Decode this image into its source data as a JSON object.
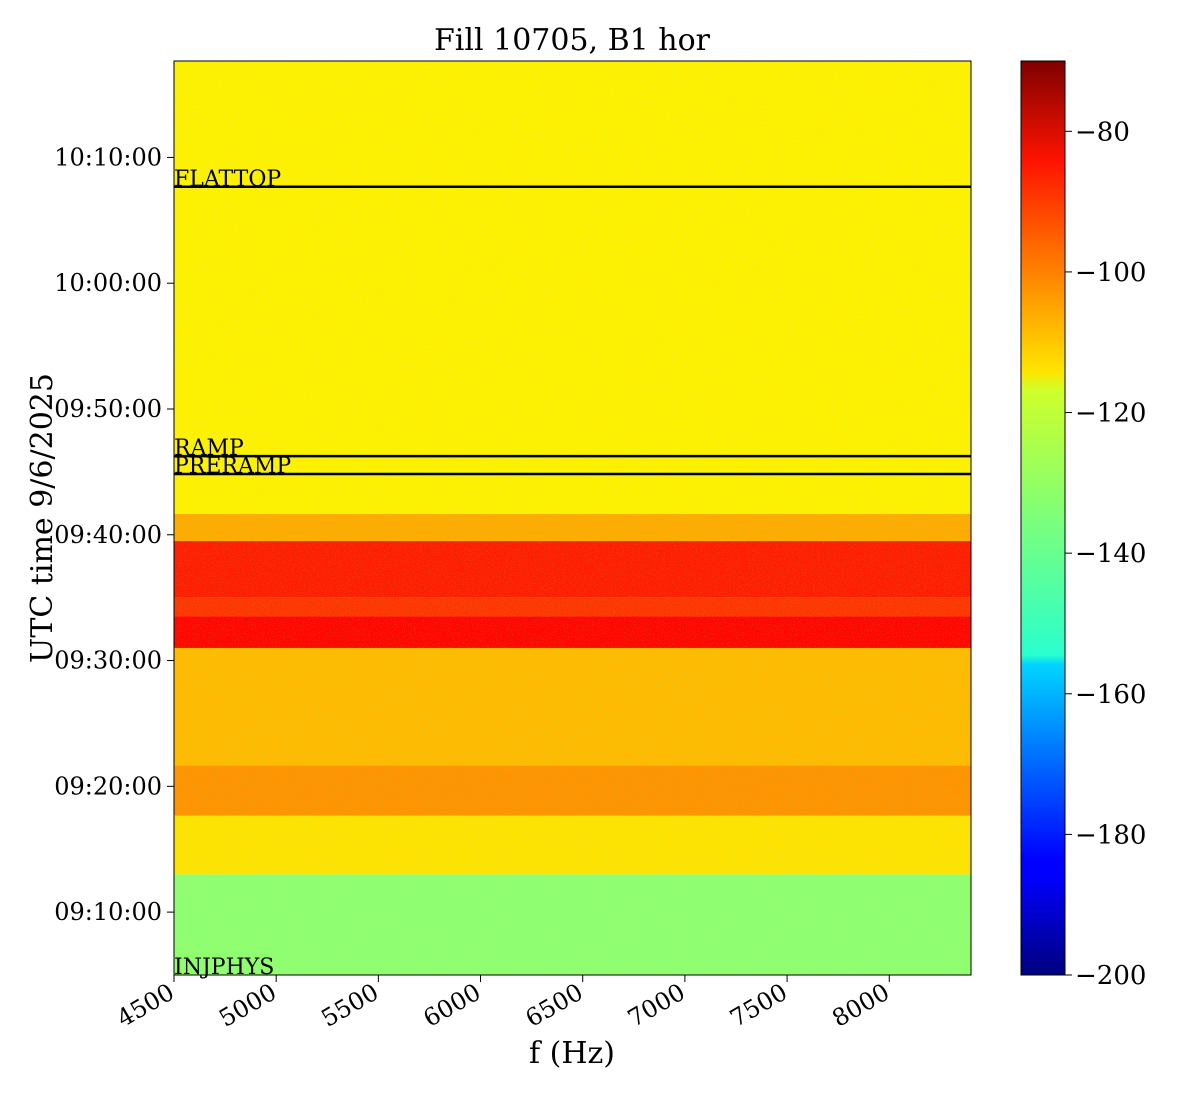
{
  "chart_data": {
    "type": "heatmap",
    "title": "Fill 10705, B1 hor",
    "xlabel": "f (Hz)",
    "ylabel": "UTC time 9/6/2025",
    "x_ticks": [
      "4500",
      "5000",
      "5500",
      "6000",
      "6500",
      "7000",
      "7500",
      "8000"
    ],
    "x_tick_values": [
      4500,
      5000,
      5500,
      6000,
      6500,
      7000,
      7500,
      8000
    ],
    "xlim": [
      4500,
      8400
    ],
    "y_ticks": [
      "09:10:00",
      "09:20:00",
      "09:30:00",
      "09:40:00",
      "09:50:00",
      "10:00:00",
      "10:10:00"
    ],
    "y_tick_values": [
      "09:10:00",
      "09:20:00",
      "09:30:00",
      "09:40:00",
      "09:50:00",
      "10:00:00",
      "10:10:00"
    ],
    "ylim": [
      "09:05:00",
      "10:17:40"
    ],
    "colorbar": {
      "ticks": [
        "−80",
        "−100",
        "−120",
        "−140",
        "−160",
        "−180",
        "−200"
      ],
      "tick_values": [
        -80,
        -100,
        -120,
        -140,
        -160,
        -180,
        -200
      ],
      "range": [
        -200,
        -70
      ],
      "colormap": "jet"
    },
    "markers": [
      {
        "label": "FLATTOP",
        "time": "10:07:40"
      },
      {
        "label": "RAMP",
        "time": "09:46:15"
      },
      {
        "label": "PRERAMP",
        "time": "09:44:50"
      },
      {
        "label": "INJPHYS",
        "time": "09:05:00"
      }
    ],
    "bands": [
      {
        "from": "09:05:00",
        "to": "09:13:00",
        "level": -133
      },
      {
        "from": "09:13:00",
        "to": "09:17:40",
        "level": -115
      },
      {
        "from": "09:17:40",
        "to": "09:21:40",
        "level": -105
      },
      {
        "from": "09:21:40",
        "to": "09:31:00",
        "level": -110
      },
      {
        "from": "09:31:00",
        "to": "09:33:30",
        "level": -87
      },
      {
        "from": "09:33:30",
        "to": "09:35:00",
        "level": -93
      },
      {
        "from": "09:35:00",
        "to": "09:39:30",
        "level": -90
      },
      {
        "from": "09:39:30",
        "to": "09:41:40",
        "level": -108
      },
      {
        "from": "09:41:40",
        "to": "10:17:40",
        "level": -117
      }
    ]
  }
}
